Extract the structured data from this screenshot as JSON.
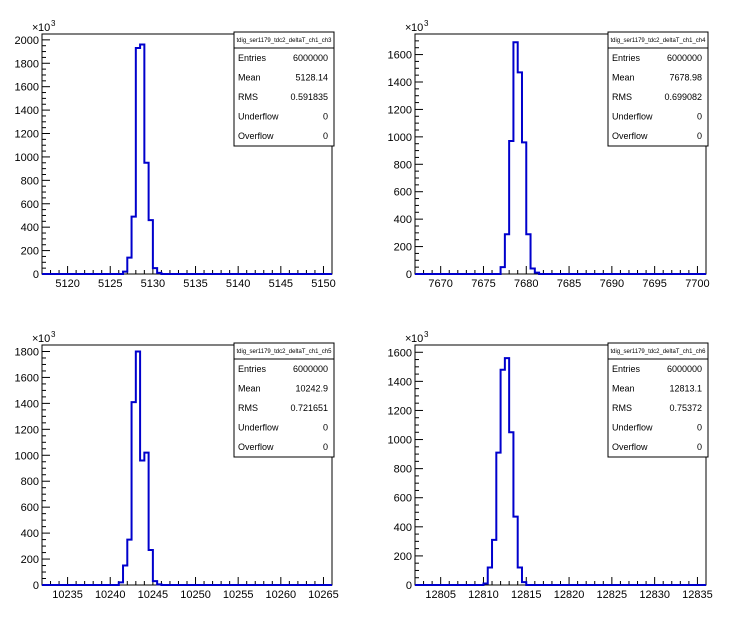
{
  "chart_data": [
    {
      "type": "histogram",
      "stats_title": "tdig_ser1179_tdc2_deltaT_ch1_ch3",
      "stats": [
        {
          "key": "Entries",
          "value": "6000000"
        },
        {
          "key": "Mean",
          "value": "5128.14"
        },
        {
          "key": "RMS",
          "value": "0.591835"
        },
        {
          "key": "Underflow",
          "value": "0"
        },
        {
          "key": "Overflow",
          "value": "0"
        }
      ],
      "xlim": [
        5117,
        5151
      ],
      "ylim": [
        0,
        2050
      ],
      "x_ticks": [
        "5120",
        "5125",
        "5130",
        "5135",
        "5140",
        "5145",
        "5150"
      ],
      "y_ticks": [
        "0",
        "200",
        "400",
        "600",
        "800",
        "1000",
        "1200",
        "1400",
        "1600",
        "1800",
        "2000"
      ],
      "y_exponent": "10",
      "y_exponent_power": "3",
      "bin_width": 0.5,
      "bins": [
        [
          5126.5,
          20
        ],
        [
          5127.0,
          140
        ],
        [
          5127.5,
          490
        ],
        [
          5128.0,
          1930
        ],
        [
          5128.5,
          1960
        ],
        [
          5129.0,
          950
        ],
        [
          5129.5,
          460
        ],
        [
          5130.0,
          50
        ],
        [
          5130.5,
          10
        ]
      ]
    },
    {
      "type": "histogram",
      "stats_title": "tdig_ser1179_tdc2_deltaT_ch1_ch4",
      "stats": [
        {
          "key": "Entries",
          "value": "6000000"
        },
        {
          "key": "Mean",
          "value": "7678.98"
        },
        {
          "key": "RMS",
          "value": "0.699082"
        },
        {
          "key": "Underflow",
          "value": "0"
        },
        {
          "key": "Overflow",
          "value": "0"
        }
      ],
      "xlim": [
        7667,
        7701
      ],
      "ylim": [
        0,
        1750
      ],
      "x_ticks": [
        "7670",
        "7675",
        "7680",
        "7685",
        "7690",
        "7695",
        "7700"
      ],
      "y_ticks": [
        "0",
        "200",
        "400",
        "600",
        "800",
        "1000",
        "1200",
        "1400",
        "1600"
      ],
      "y_exponent": "10",
      "y_exponent_power": "3",
      "bin_width": 0.5,
      "bins": [
        [
          7677.0,
          50
        ],
        [
          7677.5,
          290
        ],
        [
          7678.0,
          970
        ],
        [
          7678.5,
          1690
        ],
        [
          7679.0,
          1470
        ],
        [
          7679.5,
          960
        ],
        [
          7680.0,
          290
        ],
        [
          7680.5,
          40
        ],
        [
          7681.0,
          10
        ]
      ]
    },
    {
      "type": "histogram",
      "stats_title": "tdig_ser1179_tdc2_deltaT_ch1_ch5",
      "stats": [
        {
          "key": "Entries",
          "value": "6000000"
        },
        {
          "key": "Mean",
          "value": "10242.9"
        },
        {
          "key": "RMS",
          "value": "0.721651"
        },
        {
          "key": "Underflow",
          "value": "0"
        },
        {
          "key": "Overflow",
          "value": "0"
        }
      ],
      "xlim": [
        10232,
        10266
      ],
      "ylim": [
        0,
        1850
      ],
      "x_ticks": [
        "10235",
        "10240",
        "10245",
        "10250",
        "10255",
        "10260",
        "10265"
      ],
      "y_ticks": [
        "0",
        "200",
        "400",
        "600",
        "800",
        "1000",
        "1200",
        "1400",
        "1600",
        "1800"
      ],
      "y_exponent": "10",
      "y_exponent_power": "3",
      "bin_width": 0.5,
      "bins": [
        [
          10241.0,
          20
        ],
        [
          10241.5,
          150
        ],
        [
          10242.0,
          350
        ],
        [
          10242.5,
          1410
        ],
        [
          10243.0,
          1800
        ],
        [
          10243.5,
          960
        ],
        [
          10244.0,
          1020
        ],
        [
          10244.5,
          270
        ],
        [
          10245.0,
          30
        ],
        [
          10245.5,
          5
        ]
      ]
    },
    {
      "type": "histogram",
      "stats_title": "tdig_ser1179_tdc2_deltaT_ch1_ch6",
      "stats": [
        {
          "key": "Entries",
          "value": "6000000"
        },
        {
          "key": "Mean",
          "value": "12813.1"
        },
        {
          "key": "RMS",
          "value": "0.75372"
        },
        {
          "key": "Underflow",
          "value": "0"
        },
        {
          "key": "Overflow",
          "value": "0"
        }
      ],
      "xlim": [
        12802,
        12836
      ],
      "ylim": [
        0,
        1650
      ],
      "x_ticks": [
        "12805",
        "12810",
        "12815",
        "12820",
        "12825",
        "12830",
        "12835"
      ],
      "y_ticks": [
        "0",
        "200",
        "400",
        "600",
        "800",
        "1000",
        "1200",
        "1400",
        "1600"
      ],
      "y_exponent": "10",
      "y_exponent_power": "3",
      "bin_width": 0.5,
      "bins": [
        [
          12810.0,
          10
        ],
        [
          12810.5,
          120
        ],
        [
          12811.0,
          310
        ],
        [
          12811.5,
          910
        ],
        [
          12812.0,
          1480
        ],
        [
          12812.5,
          1560
        ],
        [
          12813.0,
          1050
        ],
        [
          12813.5,
          470
        ],
        [
          12814.0,
          120
        ],
        [
          12814.5,
          20
        ]
      ]
    }
  ]
}
